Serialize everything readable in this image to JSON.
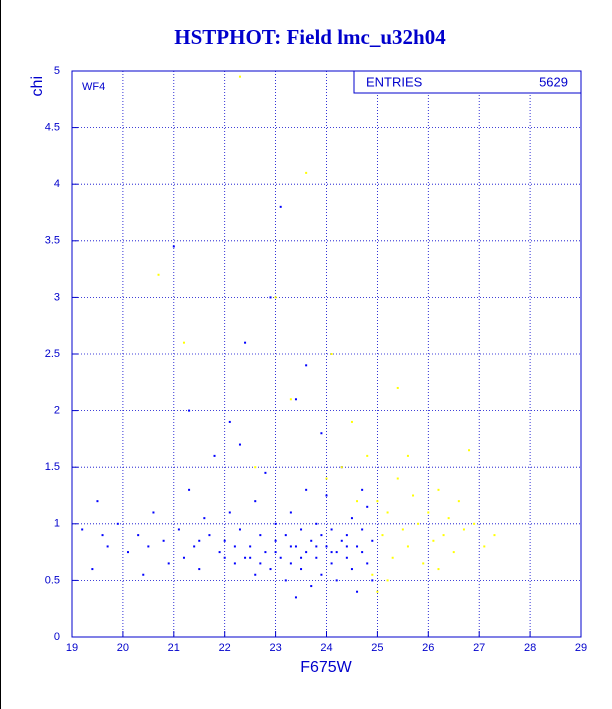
{
  "chart_data": {
    "type": "scatter",
    "title": "HSTPHOT: Field lmc_u32h04",
    "x_label": "F675W",
    "y_label": "chi",
    "annotation": "WF4",
    "stats": {
      "label": "ENTRIES",
      "value": 5629
    },
    "xlim": [
      19,
      29
    ],
    "ylim": [
      0,
      5
    ],
    "xticks": [
      19,
      20,
      21,
      22,
      23,
      24,
      25,
      26,
      27,
      28,
      29
    ],
    "yticks": [
      0,
      0.5,
      1,
      1.5,
      2,
      2.5,
      3,
      3.5,
      4,
      4.5,
      5
    ],
    "grid": true,
    "series": [
      {
        "color": "#0000ff",
        "x": [
          19.2,
          19.4,
          19.5,
          19.7,
          19.9,
          20.1,
          20.3,
          20.4,
          20.6,
          20.8,
          20.9,
          21.0,
          21.1,
          21.2,
          21.3,
          21.4,
          21.5,
          21.6,
          21.7,
          21.8,
          21.9,
          22.0,
          22.1,
          22.2,
          22.3,
          22.4,
          22.4,
          22.5,
          22.6,
          22.6,
          22.7,
          22.8,
          22.8,
          22.9,
          22.9,
          23.0,
          23.0,
          23.1,
          23.1,
          23.2,
          23.2,
          23.3,
          23.3,
          23.4,
          23.4,
          23.5,
          23.5,
          23.6,
          23.6,
          23.7,
          23.7,
          23.8,
          23.8,
          23.9,
          23.9,
          24.0,
          24.0,
          24.1,
          24.1,
          24.2,
          24.2,
          24.3,
          24.3,
          24.4,
          24.4,
          24.5,
          24.5,
          24.6,
          24.6,
          24.7,
          24.7,
          24.8,
          24.8,
          24.9,
          24.9,
          22.2,
          22.5,
          22.7,
          23.0,
          23.3,
          23.5,
          23.8,
          24.1,
          24.4,
          21.5,
          22.0,
          20.5,
          19.6,
          23.6,
          22.3,
          21.3,
          23.9,
          24.7,
          22.1,
          23.4
        ],
        "values": [
          0.95,
          0.6,
          1.2,
          0.8,
          1.0,
          0.75,
          0.9,
          0.55,
          1.1,
          0.85,
          0.65,
          3.45,
          0.95,
          0.7,
          1.3,
          0.8,
          0.6,
          1.05,
          0.9,
          1.6,
          0.75,
          0.85,
          1.9,
          0.65,
          0.95,
          2.6,
          0.7,
          0.8,
          1.2,
          0.55,
          0.9,
          0.75,
          1.45,
          3.0,
          0.6,
          0.85,
          1.0,
          0.7,
          3.8,
          0.9,
          0.5,
          1.1,
          0.65,
          0.8,
          2.1,
          0.95,
          0.6,
          0.75,
          1.3,
          0.85,
          0.45,
          0.7,
          1.0,
          0.9,
          0.55,
          0.8,
          1.25,
          0.65,
          0.95,
          0.75,
          0.5,
          0.85,
          1.5,
          0.7,
          0.9,
          0.6,
          1.05,
          0.8,
          0.4,
          0.75,
          0.95,
          0.65,
          1.15,
          0.85,
          0.5,
          0.8,
          0.7,
          0.65,
          0.75,
          0.8,
          0.7,
          0.8,
          0.75,
          0.8,
          0.85,
          0.7,
          0.8,
          0.9,
          2.4,
          1.7,
          2.0,
          1.8,
          1.3,
          1.1,
          0.35
        ]
      },
      {
        "color": "#ffff00",
        "x": [
          23.6,
          23.0,
          24.1,
          24.5,
          24.8,
          25.0,
          25.1,
          25.2,
          25.3,
          25.4,
          25.5,
          25.6,
          25.7,
          25.8,
          25.9,
          26.0,
          26.1,
          26.2,
          26.3,
          26.4,
          26.5,
          26.6,
          26.7,
          26.9,
          27.1,
          27.3,
          25.4,
          24.3,
          24.6,
          24.9,
          25.2,
          25.6,
          26.8,
          20.7,
          21.2,
          22.6,
          23.3,
          24.0,
          25.0,
          26.2,
          22.3
        ],
        "values": [
          4.1,
          3.0,
          2.5,
          1.9,
          1.6,
          1.2,
          0.9,
          1.1,
          0.7,
          1.4,
          0.95,
          0.8,
          1.25,
          1.0,
          0.65,
          1.1,
          0.85,
          1.3,
          0.9,
          1.05,
          0.75,
          1.2,
          0.95,
          1.0,
          0.8,
          0.9,
          2.2,
          1.5,
          1.2,
          0.55,
          0.5,
          1.6,
          1.65,
          3.2,
          2.6,
          1.5,
          2.1,
          1.4,
          0.4,
          0.6,
          4.95
        ]
      }
    ]
  }
}
